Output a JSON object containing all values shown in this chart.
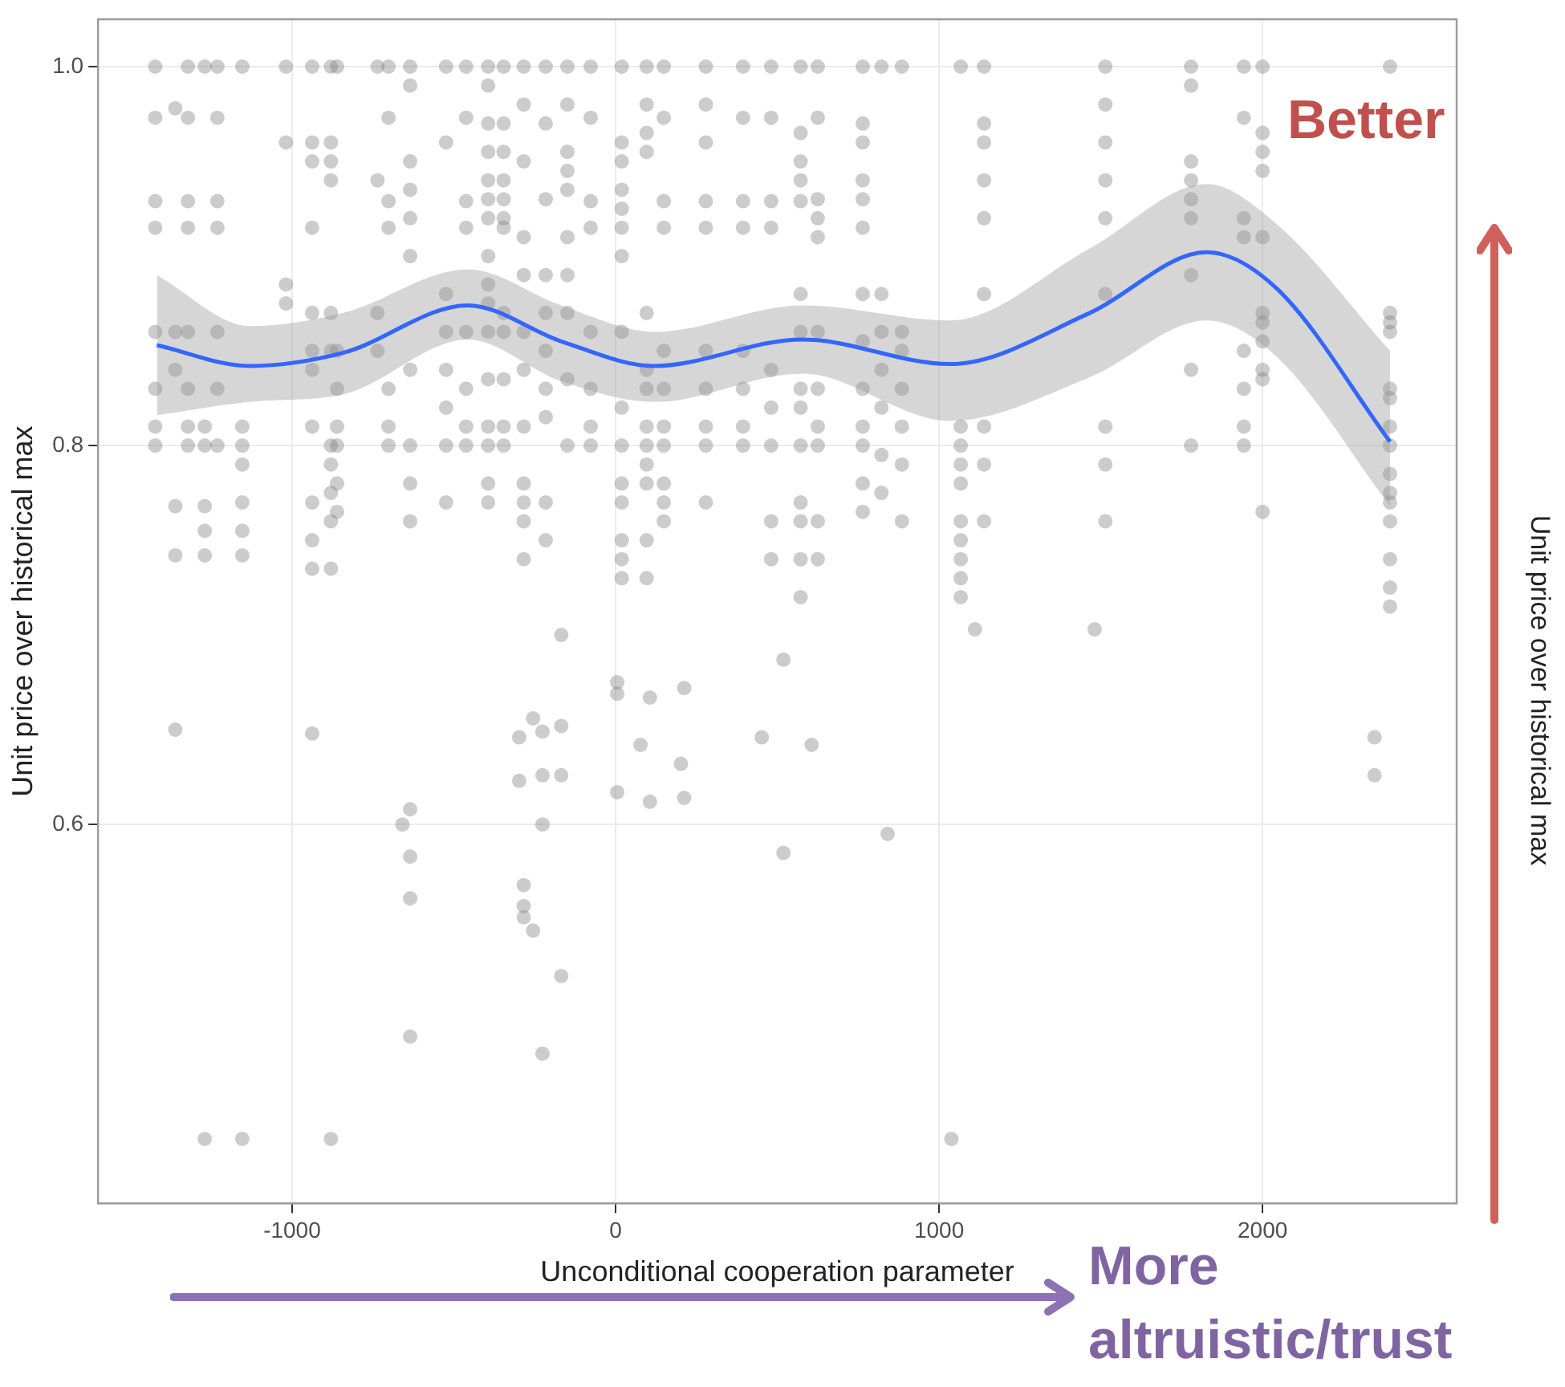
{
  "chart_data": {
    "type": "scatter",
    "xlabel": "Unconditional cooperation parameter",
    "ylabel": "Unit price over historical max",
    "annotations": [
      "Better",
      "More altruistic/trust",
      "Unit price over historical max"
    ],
    "xlim": [
      -1600,
      2600
    ],
    "xticks": [
      -1000,
      0,
      1000,
      2000
    ],
    "ylim": [
      0.4,
      1.025
    ],
    "yticks": [
      {
        "value": 0.6,
        "label": "0.6"
      },
      {
        "value": 0.8,
        "label": "0.8"
      },
      {
        "value": 1,
        "label": "1.0"
      }
    ],
    "grid": true,
    "legend": false,
    "marker": "circle",
    "series": [
      {
        "type": "scatter",
        "color": "#808080",
        "x": [
          -1423,
          -1423,
          -1423,
          -1423,
          -1423,
          -1423,
          -1423,
          -1423,
          -1361,
          -1361,
          -1361,
          -1361,
          -1361,
          -1361,
          -1322,
          -1322,
          -1322,
          -1322,
          -1322,
          -1322,
          -1322,
          -1322,
          -1270,
          -1270,
          -1270,
          -1270,
          -1270,
          -1270,
          -1270,
          -1231,
          -1231,
          -1231,
          -1231,
          -1231,
          -1231,
          -1231,
          -1154,
          -1154,
          -1154,
          -1154,
          -1154,
          -1154,
          -1154,
          -1154,
          -1019,
          -1019,
          -1019,
          -1019,
          -938,
          -938,
          -938,
          -938,
          -938,
          -938,
          -938,
          -938,
          -938,
          -938,
          -938,
          -938,
          -880,
          -880,
          -880,
          -880,
          -880,
          -880,
          -880,
          -880,
          -880,
          -880,
          -880,
          -880,
          -861,
          -861,
          -861,
          -861,
          -861,
          -861,
          -861,
          -736,
          -736,
          -736,
          -736,
          -702,
          -702,
          -702,
          -702,
          -702,
          -702,
          -702,
          -635,
          -635,
          -635,
          -635,
          -635,
          -635,
          -635,
          -635,
          -635,
          -635,
          -635,
          -635,
          -635,
          -635,
          -659,
          -524,
          -524,
          -524,
          -524,
          -524,
          -524,
          -524,
          -524,
          -462,
          -462,
          -462,
          -462,
          -462,
          -462,
          -462,
          -462,
          -394,
          -394,
          -394,
          -394,
          -394,
          -394,
          -394,
          -394,
          -394,
          -394,
          -394,
          -394,
          -394,
          -394,
          -394,
          -394,
          -346,
          -346,
          -346,
          -346,
          -346,
          -346,
          -346,
          -346,
          -346,
          -346,
          -346,
          -346,
          -298,
          -298,
          -284,
          -284,
          -284,
          -284,
          -284,
          -284,
          -284,
          -284,
          -284,
          -284,
          -284,
          -284,
          -284,
          -284,
          -284,
          -255,
          -255,
          -226,
          -226,
          -226,
          -226,
          -216,
          -216,
          -216,
          -216,
          -216,
          -216,
          -216,
          -216,
          -216,
          -216,
          -168,
          -168,
          -168,
          -168,
          -149,
          -149,
          -149,
          -149,
          -149,
          -149,
          -149,
          -149,
          -149,
          -149,
          -77,
          -77,
          -77,
          -77,
          -77,
          -77,
          -77,
          -77,
          5,
          5,
          5,
          19,
          19,
          19,
          19,
          19,
          19,
          19,
          19,
          19,
          19,
          19,
          19,
          19,
          19,
          19,
          77,
          96,
          96,
          96,
          96,
          96,
          96,
          96,
          96,
          96,
          96,
          96,
          96,
          96,
          106,
          106,
          149,
          149,
          149,
          149,
          149,
          149,
          149,
          149,
          149,
          149,
          149,
          202,
          212,
          212,
          279,
          279,
          279,
          279,
          279,
          279,
          279,
          279,
          279,
          279,
          394,
          394,
          394,
          394,
          394,
          394,
          394,
          394,
          452,
          481,
          481,
          481,
          481,
          481,
          481,
          481,
          481,
          481,
          519,
          519,
          572,
          572,
          572,
          572,
          572,
          572,
          572,
          572,
          572,
          572,
          572,
          572,
          572,
          572,
          606,
          625,
          625,
          625,
          625,
          625,
          625,
          625,
          625,
          625,
          625,
          625,
          764,
          764,
          764,
          764,
          764,
          764,
          764,
          764,
          764,
          764,
          764,
          764,
          764,
          822,
          822,
          822,
          822,
          822,
          822,
          822,
          841,
          885,
          885,
          885,
          885,
          885,
          885,
          885,
          1038,
          1067,
          1067,
          1067,
          1067,
          1067,
          1067,
          1067,
          1067,
          1067,
          1067,
          1111,
          1139,
          1139,
          1139,
          1139,
          1139,
          1139,
          1139,
          1139,
          1139,
          1481,
          1514,
          1514,
          1514,
          1514,
          1514,
          1514,
          1514,
          1514,
          1514,
          1779,
          1779,
          1779,
          1779,
          1779,
          1779,
          1779,
          1779,
          1779,
          1942,
          1942,
          1942,
          1942,
          1942,
          1942,
          1942,
          1942,
          2000,
          2000,
          2000,
          2000,
          2000,
          2000,
          2000,
          2000,
          2000,
          2000,
          2000,
          2394,
          2394,
          2394,
          2394,
          2394,
          2394,
          2394,
          2394,
          2394,
          2394,
          2394,
          2394,
          2394,
          2394,
          2394,
          2346,
          2346
        ],
        "values": [
          1.0,
          0.973,
          0.929,
          0.915,
          0.86,
          0.83,
          0.81,
          0.8,
          0.978,
          0.86,
          0.84,
          0.768,
          0.742,
          0.65,
          1.0,
          0.973,
          0.929,
          0.915,
          0.86,
          0.83,
          0.81,
          0.8,
          1.0,
          0.81,
          0.8,
          0.768,
          0.755,
          0.742,
          0.434,
          1.0,
          0.973,
          0.929,
          0.915,
          0.86,
          0.83,
          0.8,
          1.0,
          0.81,
          0.8,
          0.79,
          0.77,
          0.755,
          0.742,
          0.434,
          1.0,
          0.96,
          0.885,
          0.875,
          1.0,
          0.96,
          0.95,
          0.915,
          0.87,
          0.85,
          0.84,
          0.81,
          0.77,
          0.75,
          0.735,
          0.648,
          1.0,
          0.96,
          0.95,
          0.94,
          0.87,
          0.85,
          0.8,
          0.79,
          0.775,
          0.76,
          0.735,
          0.434,
          1.0,
          0.85,
          0.83,
          0.81,
          0.8,
          0.78,
          0.765,
          1.0,
          0.94,
          0.87,
          0.85,
          1.0,
          0.973,
          0.929,
          0.915,
          0.83,
          0.81,
          0.8,
          1.0,
          0.99,
          0.95,
          0.935,
          0.92,
          0.9,
          0.84,
          0.8,
          0.78,
          0.76,
          0.608,
          0.583,
          0.561,
          0.488,
          0.6,
          1.0,
          0.96,
          0.88,
          0.86,
          0.84,
          0.82,
          0.8,
          0.77,
          1.0,
          0.973,
          0.929,
          0.915,
          0.86,
          0.83,
          0.81,
          0.8,
          1.0,
          0.99,
          0.97,
          0.955,
          0.94,
          0.93,
          0.92,
          0.9,
          0.885,
          0.875,
          0.86,
          0.835,
          0.81,
          0.8,
          0.78,
          0.77,
          1.0,
          0.97,
          0.955,
          0.94,
          0.93,
          0.92,
          0.915,
          0.87,
          0.86,
          0.835,
          0.81,
          0.8,
          0.646,
          0.623,
          1.0,
          0.98,
          0.95,
          0.91,
          0.89,
          0.86,
          0.84,
          0.81,
          0.78,
          0.77,
          0.76,
          0.74,
          0.568,
          0.557,
          0.551,
          0.656,
          0.544,
          0.649,
          0.626,
          0.6,
          0.479,
          1.0,
          0.97,
          0.93,
          0.89,
          0.87,
          0.85,
          0.83,
          0.815,
          0.77,
          0.75,
          0.7,
          0.652,
          0.626,
          0.52,
          1.0,
          0.98,
          0.955,
          0.945,
          0.935,
          0.91,
          0.89,
          0.87,
          0.835,
          0.8,
          1.0,
          0.973,
          0.929,
          0.915,
          0.86,
          0.83,
          0.81,
          0.8,
          0.675,
          0.669,
          0.617,
          1.0,
          0.96,
          0.95,
          0.935,
          0.925,
          0.915,
          0.9,
          0.86,
          0.82,
          0.8,
          0.78,
          0.77,
          0.75,
          0.74,
          0.73,
          0.642,
          1.0,
          0.98,
          0.965,
          0.955,
          0.87,
          0.84,
          0.83,
          0.81,
          0.8,
          0.79,
          0.78,
          0.75,
          0.73,
          0.667,
          0.612,
          1.0,
          0.973,
          0.929,
          0.915,
          0.85,
          0.83,
          0.81,
          0.8,
          0.78,
          0.77,
          0.76,
          0.632,
          0.672,
          0.614,
          1.0,
          0.98,
          0.96,
          0.929,
          0.915,
          0.85,
          0.83,
          0.81,
          0.8,
          0.77,
          1.0,
          0.973,
          0.929,
          0.915,
          0.85,
          0.83,
          0.81,
          0.8,
          0.646,
          1.0,
          0.973,
          0.929,
          0.915,
          0.84,
          0.82,
          0.8,
          0.76,
          0.74,
          0.687,
          0.585,
          1.0,
          0.965,
          0.95,
          0.94,
          0.929,
          0.88,
          0.86,
          0.83,
          0.82,
          0.8,
          0.77,
          0.76,
          0.74,
          0.72,
          0.642,
          1.0,
          0.973,
          0.93,
          0.92,
          0.91,
          0.86,
          0.83,
          0.81,
          0.8,
          0.76,
          0.74,
          1.0,
          0.97,
          0.96,
          0.94,
          0.93,
          0.915,
          0.88,
          0.855,
          0.83,
          0.81,
          0.8,
          0.78,
          0.765,
          1.0,
          0.88,
          0.86,
          0.84,
          0.82,
          0.795,
          0.775,
          0.595,
          1.0,
          0.86,
          0.85,
          0.83,
          0.81,
          0.79,
          0.76,
          0.434,
          1.0,
          0.81,
          0.8,
          0.79,
          0.78,
          0.76,
          0.75,
          0.74,
          0.73,
          0.72,
          0.703,
          1.0,
          0.97,
          0.96,
          0.94,
          0.92,
          0.88,
          0.81,
          0.79,
          0.76,
          0.703,
          1.0,
          0.98,
          0.96,
          0.94,
          0.92,
          0.88,
          0.81,
          0.79,
          0.76,
          1.0,
          0.99,
          0.95,
          0.94,
          0.93,
          0.92,
          0.89,
          0.84,
          0.8,
          1.0,
          0.973,
          0.92,
          0.91,
          0.85,
          0.83,
          0.81,
          0.8,
          1.0,
          0.965,
          0.955,
          0.945,
          0.91,
          0.87,
          0.865,
          0.855,
          0.84,
          0.835,
          0.765,
          1.0,
          0.87,
          0.865,
          0.86,
          0.83,
          0.825,
          0.81,
          0.8,
          0.785,
          0.775,
          0.77,
          0.76,
          0.74,
          0.725,
          0.715,
          0.646,
          0.626
        ]
      },
      {
        "type": "line",
        "color": "#3366ff",
        "marker": "none",
        "x": [
          -1418,
          -1130,
          -841,
          -457,
          -168,
          120,
          577,
          1034,
          1466,
          1827,
          2043,
          2394
        ],
        "values": [
          0.853,
          0.842,
          0.849,
          0.874,
          0.855,
          0.842,
          0.856,
          0.843,
          0.87,
          0.902,
          0.883,
          0.802
        ],
        "lower": [
          0.816,
          0.823,
          0.827,
          0.856,
          0.834,
          0.823,
          0.838,
          0.813,
          0.836,
          0.866,
          0.847,
          0.768
        ],
        "upper": [
          0.89,
          0.863,
          0.87,
          0.893,
          0.874,
          0.86,
          0.874,
          0.866,
          0.904,
          0.938,
          0.917,
          0.85
        ]
      }
    ]
  }
}
